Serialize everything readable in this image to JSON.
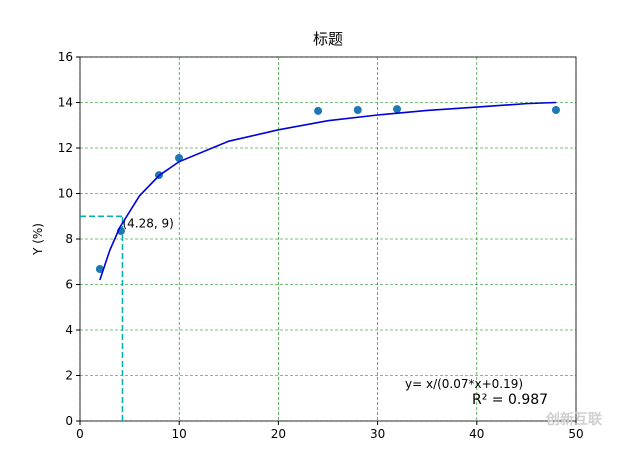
{
  "chart_data": {
    "type": "scatter",
    "title": "标题",
    "ylabel": "Y (%)",
    "xlim": [
      0,
      50
    ],
    "ylim": [
      0,
      16
    ],
    "xticks": [
      0,
      10,
      20,
      30,
      40,
      50
    ],
    "yticks": [
      0,
      2,
      4,
      6,
      8,
      10,
      12,
      14,
      16
    ],
    "grid": true,
    "grid_color": "#008000",
    "series": [
      {
        "type": "scatter",
        "color": "#1f77b4",
        "x": [
          2,
          4.13,
          7.96,
          9.98,
          24,
          28,
          31.96,
          47.98
        ],
        "values": [
          6.68,
          8.35,
          10.81,
          11.56,
          13.63,
          13.67,
          13.71,
          13.67
        ]
      },
      {
        "type": "line",
        "color": "#0000dd",
        "x": [
          2,
          3,
          4,
          6,
          8,
          10,
          15,
          20,
          25,
          30,
          35,
          40,
          45,
          48
        ],
        "values": [
          6.2,
          7.5,
          8.5,
          9.9,
          10.8,
          11.4,
          12.3,
          12.8,
          13.2,
          13.45,
          13.65,
          13.8,
          13.95,
          14.0
        ]
      }
    ],
    "marker": {
      "x": 4.28,
      "y": 9,
      "label": "(4.28, 9)",
      "color": "#00b0b0"
    },
    "equation": "y= x/(0.07*x+0.19)",
    "r2": "R² = 0.987",
    "watermark": "创新互联"
  }
}
